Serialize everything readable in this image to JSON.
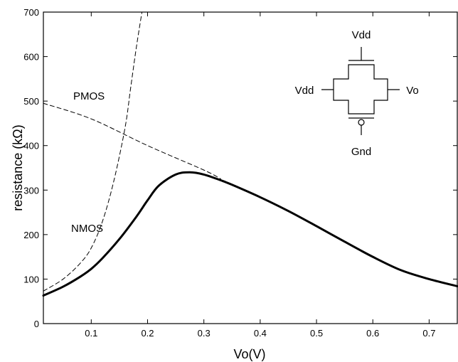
{
  "chart_data": {
    "type": "line",
    "xlabel": "Vo(V)",
    "ylabel": "resistance (kΩ)",
    "xlim": [
      0.015,
      0.75
    ],
    "ylim": [
      0,
      700
    ],
    "xticks": [
      0.1,
      0.2,
      0.3,
      0.4,
      0.5,
      0.6,
      0.7
    ],
    "yticks": [
      0,
      100,
      200,
      300,
      400,
      500,
      600,
      700
    ],
    "xtick_labels": [
      "0.1",
      "0.2",
      "0.3",
      "0.4",
      "0.5",
      "0.6",
      "0.7"
    ],
    "ytick_labels": [
      "0",
      "100",
      "200",
      "300",
      "400",
      "500",
      "600",
      "700"
    ],
    "grid": false,
    "series": [
      {
        "style": "solid-thick",
        "x": [
          0.015,
          0.05,
          0.08,
          0.1,
          0.12,
          0.15,
          0.18,
          0.2,
          0.22,
          0.25,
          0.275,
          0.3,
          0.33,
          0.35,
          0.4,
          0.45,
          0.5,
          0.55,
          0.6,
          0.65,
          0.7,
          0.75
        ],
        "y": [
          63,
          83,
          105,
          123,
          147,
          190,
          240,
          277,
          310,
          335,
          340,
          335,
          322,
          312,
          284,
          253,
          219,
          184,
          150,
          120,
          100,
          84
        ]
      },
      {
        "name": "NMOS",
        "style": "dashed",
        "x": [
          0.015,
          0.05,
          0.08,
          0.1,
          0.12,
          0.14,
          0.16,
          0.17,
          0.18,
          0.19
        ],
        "y": [
          73,
          100,
          135,
          170,
          230,
          320,
          440,
          530,
          620,
          700
        ]
      },
      {
        "name": "PMOS",
        "style": "dashed",
        "x": [
          0.015,
          0.1,
          0.2,
          0.3,
          0.33
        ],
        "y": [
          495,
          460,
          400,
          345,
          325
        ]
      }
    ],
    "annotations": [
      {
        "text": "PMOS",
        "x": 0.05,
        "y": 505
      },
      {
        "text": "NMOS",
        "x": 0.05,
        "y": 215
      }
    ],
    "inset": {
      "top_label": "Vdd",
      "left_label": "Vdd",
      "right_label": "Vo",
      "bottom_label": "Gnd"
    }
  }
}
